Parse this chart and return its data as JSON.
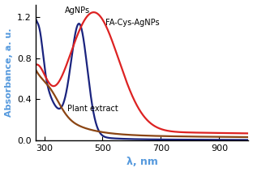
{
  "title": "",
  "xlabel": "λ, nm",
  "ylabel": "Absorbance, a. u.",
  "xlim": [
    270,
    1000
  ],
  "ylim": [
    0.0,
    1.32
  ],
  "yticks": [
    0.0,
    0.4,
    0.8,
    1.2
  ],
  "xticks": [
    300,
    500,
    700,
    900
  ],
  "ylabel_color": "#5599dd",
  "xlabel_color": "#5599dd",
  "line_agnps_color": "#1a237e",
  "line_facys_color": "#dd2222",
  "line_plant_color": "#8B4513",
  "label_agnps": "AgNPs",
  "label_facys": "FA-Cys-AgNPs",
  "label_plant": "Plant extract",
  "background_color": "#ffffff"
}
